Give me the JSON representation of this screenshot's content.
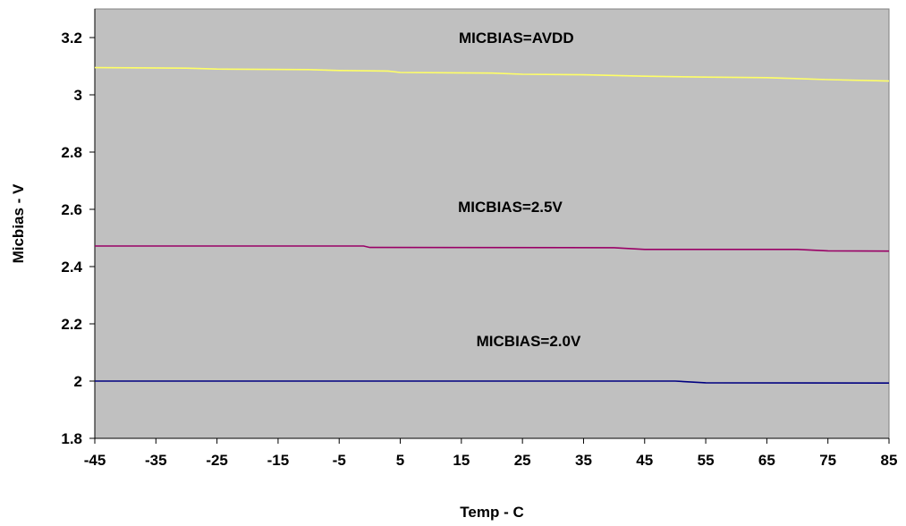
{
  "chart_data": {
    "type": "line",
    "title": "",
    "xlabel": "Temp - C",
    "ylabel": "Micbias - V",
    "xlim": [
      -45,
      85
    ],
    "ylim": [
      1.8,
      3.3
    ],
    "x_ticks": [
      -45,
      -35,
      -25,
      -15,
      -5,
      5,
      15,
      25,
      35,
      45,
      55,
      65,
      75,
      85
    ],
    "x_tick_labels": [
      "-45",
      "-35",
      "-25",
      "-15",
      "-5",
      "5",
      "15",
      "25",
      "35",
      "45",
      "55",
      "65",
      "75",
      "85"
    ],
    "y_ticks": [
      1.8,
      2.0,
      2.2,
      2.4,
      2.6,
      2.8,
      3.0,
      3.2
    ],
    "y_tick_labels": [
      "1.8",
      "2",
      "2.2",
      "2.4",
      "2.6",
      "2.8",
      "3",
      "3.2"
    ],
    "grid": false,
    "legend": "none",
    "plot_background": "#c0c0c0",
    "series": [
      {
        "color": "#ffff66",
        "x": [
          -45,
          -30,
          -25,
          -10,
          -5,
          3,
          5,
          20,
          25,
          35,
          45,
          55,
          65,
          75,
          85
        ],
        "y": [
          3.095,
          3.093,
          3.09,
          3.088,
          3.085,
          3.083,
          3.078,
          3.076,
          3.072,
          3.07,
          3.065,
          3.062,
          3.06,
          3.053,
          3.048
        ]
      },
      {
        "color": "#990066",
        "x": [
          -45,
          -5,
          -1,
          0,
          40,
          45,
          70,
          75,
          85
        ],
        "y": [
          2.472,
          2.472,
          2.472,
          2.467,
          2.466,
          2.46,
          2.46,
          2.455,
          2.454
        ]
      },
      {
        "color": "#000080",
        "x": [
          -45,
          50,
          55,
          85
        ],
        "y": [
          2.0,
          2.0,
          1.994,
          1.993
        ]
      }
    ],
    "annotations": [
      {
        "text": "MICBIAS=AVDD",
        "x": 24,
        "y": 3.2
      },
      {
        "text": "MICBIAS=2.5V",
        "x": 23,
        "y": 2.61
      },
      {
        "text": "MICBIAS=2.0V",
        "x": 26,
        "y": 2.14
      }
    ]
  }
}
